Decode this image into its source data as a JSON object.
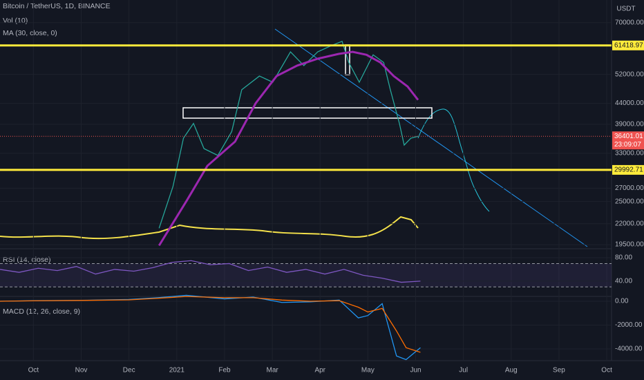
{
  "chart_data": [
    {
      "type": "line",
      "title": "Bitcoin / TetherUS, 1D, BINANCE",
      "annotations": [
        "Vol (10)"
      ],
      "y_label": "USDT",
      "log_scale": true,
      "grid": true,
      "xlim": [
        -0.7,
        12.1
      ],
      "xticks": [
        {
          "value": 0,
          "label": "Oct"
        },
        {
          "value": 1,
          "label": "Nov"
        },
        {
          "value": 2,
          "label": "Dec"
        },
        {
          "value": 3,
          "label": "2021"
        },
        {
          "value": 4,
          "label": "Feb"
        },
        {
          "value": 5,
          "label": "Mar"
        },
        {
          "value": 6,
          "label": "Apr"
        },
        {
          "value": 7,
          "label": "May"
        },
        {
          "value": 8,
          "label": "Jun"
        },
        {
          "value": 9,
          "label": "Jul"
        },
        {
          "value": 10,
          "label": "Aug"
        },
        {
          "value": 11,
          "label": "Sep"
        },
        {
          "value": 12,
          "label": "Oct"
        }
      ],
      "ylim": [
        19200,
        79800
      ],
      "yticks": [
        {
          "value": 70000,
          "label": "70000.00"
        },
        {
          "value": 52000,
          "label": "52000.00"
        },
        {
          "value": 44000,
          "label": "44000.00"
        },
        {
          "value": 39000,
          "label": "39000.00"
        },
        {
          "value": 33000,
          "label": "33000.00"
        },
        {
          "value": 27000,
          "label": "27000.00"
        },
        {
          "value": 25000,
          "label": "25000.00"
        },
        {
          "value": 22000,
          "label": "22000.00"
        },
        {
          "value": 19500,
          "label": "19500.00"
        }
      ],
      "levels": [
        {
          "value": 61418.97,
          "label": "61418.97",
          "color": "#ffeb3b"
        },
        {
          "value": 29992.71,
          "label": "29992.71",
          "color": "#ffeb3b"
        }
      ],
      "last_price": {
        "value": 36401.01,
        "label": "36401.01",
        "countdown": "23:09:07",
        "color": "#ef5350"
      },
      "series": [
        {
          "color": "#26a69a",
          "x": [
            2.63,
            2.92,
            3.14,
            3.35,
            3.57,
            3.86,
            4.15,
            4.36,
            4.73,
            5.01,
            5.38,
            5.66,
            5.95,
            6.24,
            6.46,
            6.6,
            6.82,
            7.11,
            7.33,
            7.47,
            7.66,
            7.76,
            7.9,
            8.05
          ],
          "values": [
            21440,
            27240,
            36000,
            39200,
            33900,
            32600,
            37400,
            47600,
            51500,
            49700,
            59200,
            54700,
            59200,
            61400,
            62900,
            55700,
            49700,
            58200,
            55700,
            47600,
            39200,
            34600,
            36000,
            36400
          ]
        },
        {
          "name": "MA (30, close, 0)",
          "color": "#9c27b0",
          "x": [
            2.63,
            3.21,
            3.64,
            4.22,
            4.65,
            5.09,
            5.52,
            5.95,
            6.39,
            6.68,
            6.97,
            7.26,
            7.54,
            7.83,
            8.05
          ],
          "values": [
            19400,
            25150,
            30700,
            35300,
            44000,
            51500,
            54700,
            56900,
            58500,
            59200,
            58200,
            55700,
            51500,
            48500,
            44900
          ]
        }
      ]
    },
    {
      "type": "line",
      "title": "RSI (14, close)",
      "ylim": [
        15,
        93
      ],
      "band": [
        30,
        70
      ],
      "yticks": [
        {
          "value": 80,
          "label": "80.00"
        },
        {
          "value": 40,
          "label": "40.00"
        }
      ],
      "series": [
        {
          "color": "#7e57c2",
          "x": [
            -0.7,
            -0.3,
            0.1,
            0.5,
            0.9,
            1.3,
            1.7,
            2.1,
            2.5,
            2.9,
            3.3,
            3.7,
            4.1,
            4.5,
            4.9,
            5.3,
            5.7,
            6.1,
            6.5,
            6.9,
            7.3,
            7.7,
            8.1
          ],
          "values": [
            60,
            55,
            62,
            58,
            65,
            52,
            60,
            57,
            63,
            72,
            75,
            68,
            70,
            58,
            64,
            55,
            60,
            52,
            60,
            50,
            45,
            38,
            40
          ]
        }
      ]
    },
    {
      "type": "line",
      "title": "MACD (12, 26, close, 9)",
      "ylim": [
        -4990,
        350
      ],
      "yticks": [
        {
          "value": 0,
          "label": "0.00"
        },
        {
          "value": -2000,
          "label": "-2000.00"
        },
        {
          "value": -4000,
          "label": "-4000.00"
        }
      ],
      "series": [
        {
          "color": "#2196f3",
          "x": [
            -0.7,
            0,
            1,
            2,
            2.6,
            3.2,
            4,
            4.6,
            5.2,
            5.8,
            6.4,
            6.8,
            7.0,
            7.3,
            7.6,
            7.8,
            8.1
          ],
          "values": [
            0,
            50,
            80,
            150,
            300,
            500,
            200,
            350,
            -100,
            -50,
            100,
            -1400,
            -1200,
            -200,
            -4600,
            -4900,
            -3900
          ]
        },
        {
          "color": "#ff6d00",
          "x": [
            -0.7,
            0,
            1,
            2,
            2.6,
            3.2,
            4,
            4.6,
            5.2,
            5.8,
            6.4,
            6.8,
            7.0,
            7.3,
            7.6,
            7.8,
            8.1
          ],
          "values": [
            0,
            40,
            70,
            120,
            250,
            400,
            300,
            300,
            100,
            0,
            50,
            -500,
            -900,
            -600,
            -2500,
            -3900,
            -4290
          ]
        }
      ]
    }
  ]
}
